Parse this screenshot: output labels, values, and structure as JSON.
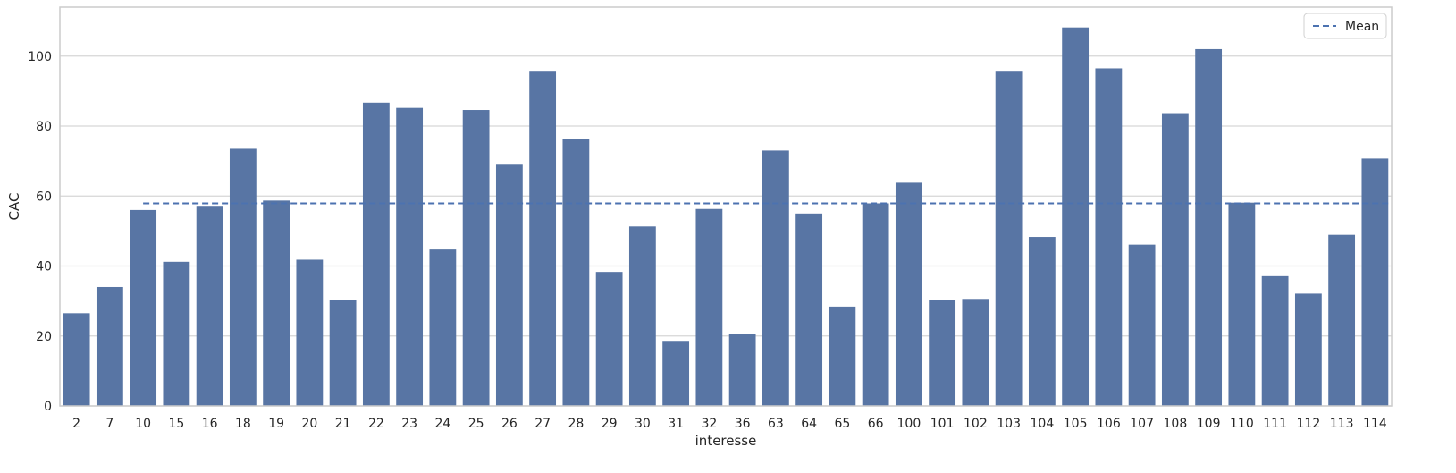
{
  "chart_data": {
    "type": "bar",
    "title": "",
    "xlabel": "interesse",
    "ylabel": "CAC",
    "ylim": [
      0,
      114
    ],
    "yticks": [
      0,
      20,
      40,
      60,
      80,
      100
    ],
    "grid": "horizontal",
    "legend": {
      "placement": "top-right",
      "entries": [
        {
          "label": "Mean",
          "style": "dashed-line"
        }
      ]
    },
    "colors": {
      "bar": "#5875a4",
      "mean_line": "#4c72b0",
      "grid": "#d6d6d6",
      "spine": "#cccccc",
      "text": "#262626"
    },
    "categories": [
      "2",
      "7",
      "10",
      "15",
      "16",
      "18",
      "19",
      "20",
      "21",
      "22",
      "23",
      "24",
      "25",
      "26",
      "27",
      "28",
      "29",
      "30",
      "31",
      "32",
      "36",
      "63",
      "64",
      "65",
      "66",
      "100",
      "101",
      "102",
      "103",
      "104",
      "105",
      "106",
      "107",
      "108",
      "109",
      "110",
      "111",
      "112",
      "113",
      "114"
    ],
    "values": [
      26.5,
      34,
      56,
      41.2,
      57.2,
      73.5,
      58.7,
      41.8,
      30.4,
      86.7,
      85.2,
      44.7,
      84.6,
      69.2,
      95.8,
      76.4,
      38.3,
      51.3,
      18.6,
      56.3,
      20.6,
      73,
      55,
      28.4,
      57.9,
      63.8,
      30.2,
      30.6,
      95.8,
      48.3,
      108.2,
      96.5,
      46.1,
      83.7,
      102,
      58.1,
      37.1,
      32.1,
      48.9,
      70.7
    ],
    "mean": {
      "label": "Mean",
      "value": 57.9,
      "x_start": "10",
      "x_end": "114"
    }
  }
}
